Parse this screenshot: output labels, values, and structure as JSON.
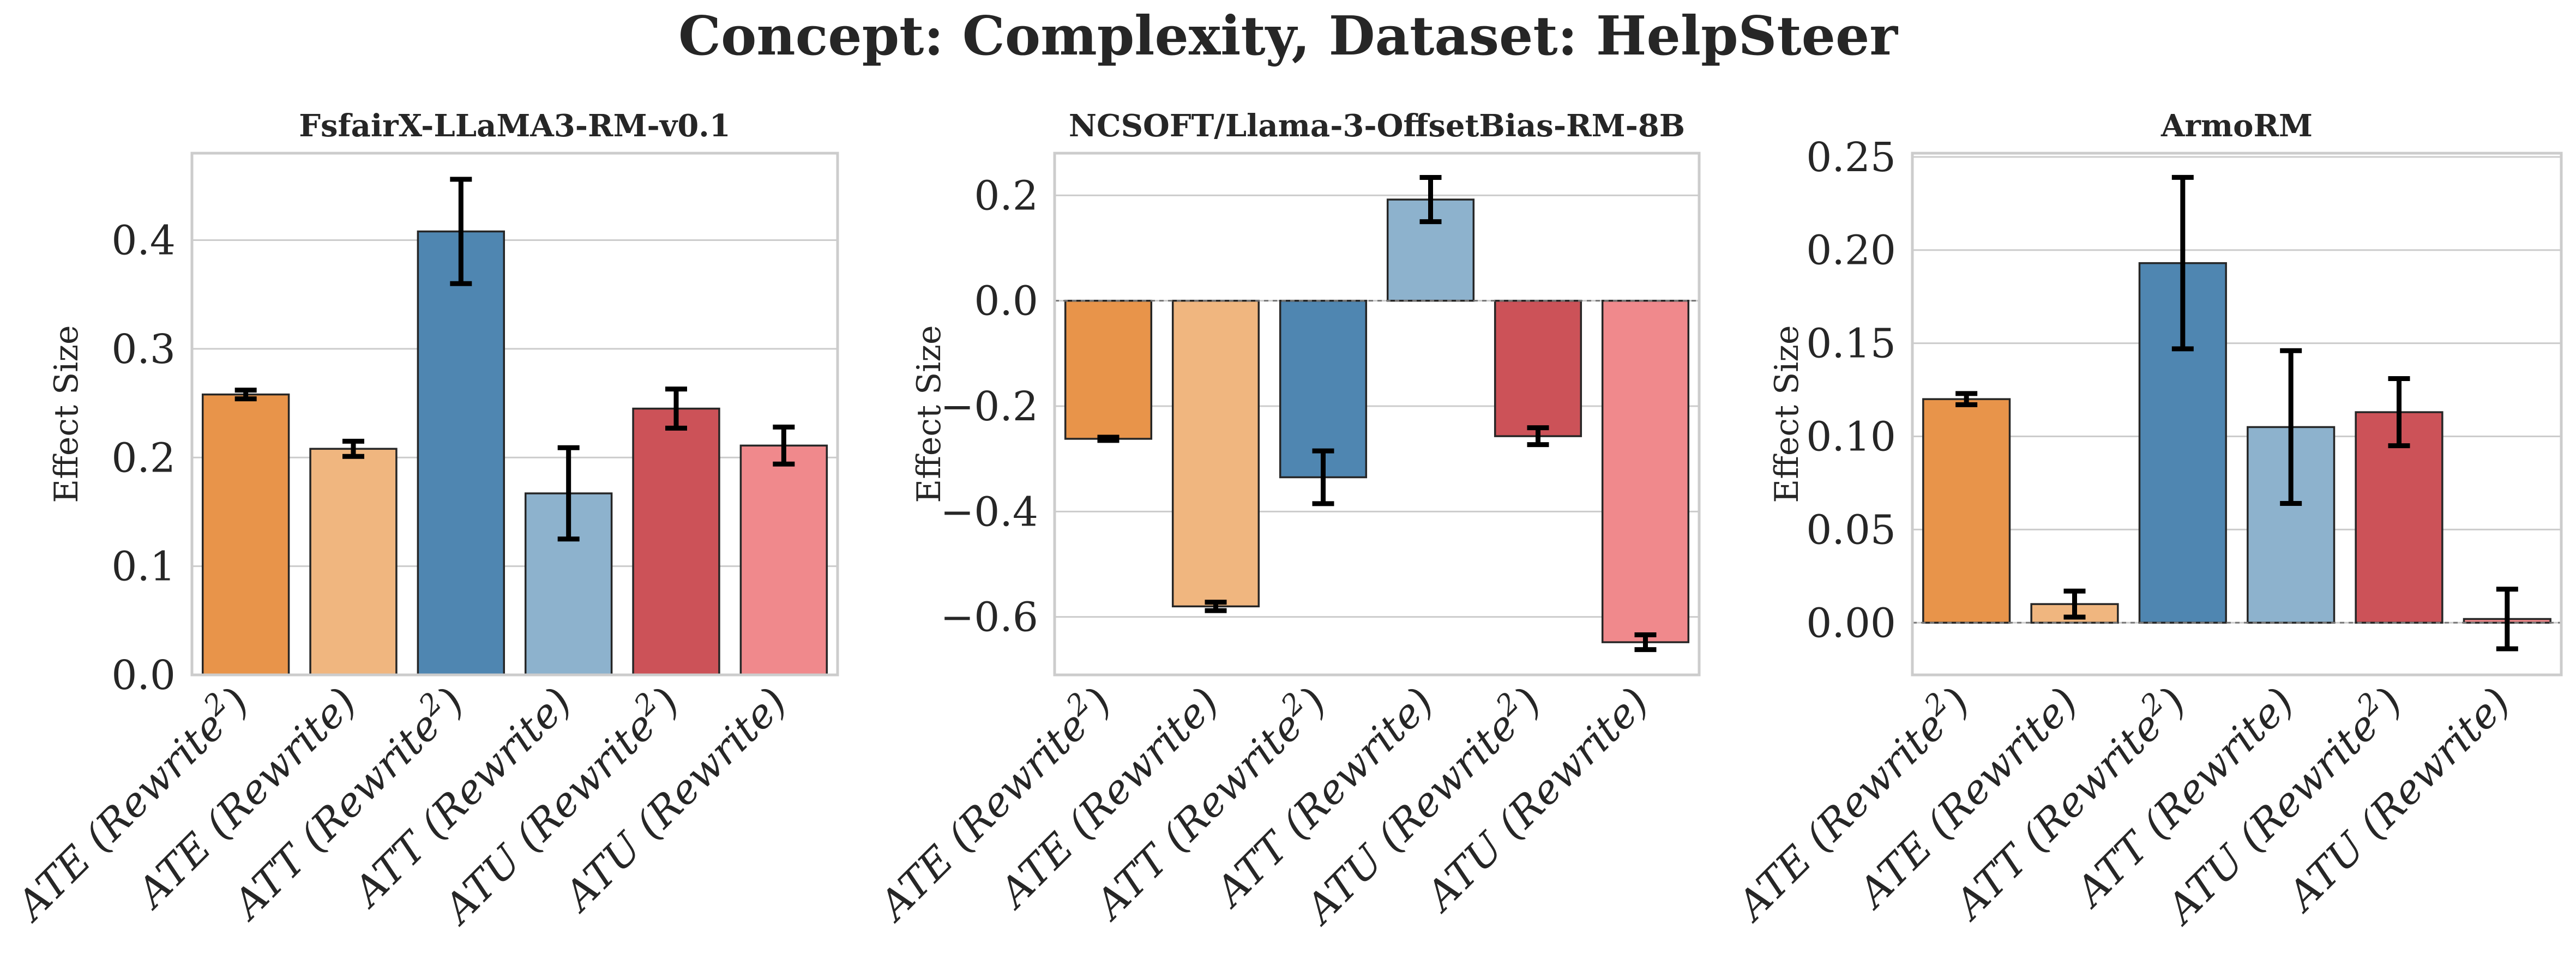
{
  "figure": {
    "title": "Concept: Complexity, Dataset: HelpSteer"
  },
  "chart_data": [
    {
      "type": "bar",
      "title": "FsfairX-LLaMA3-RM-v0.1",
      "ylabel": "Effect Size",
      "ylim": [
        0.0,
        0.48
      ],
      "yticks": [
        0.0,
        0.1,
        0.2,
        0.3,
        0.4
      ],
      "ytick_labels": [
        "0.0",
        "0.1",
        "0.2",
        "0.3",
        "0.4"
      ],
      "categories": [
        {
          "base": "ATE (Rewrite",
          "sup": "2",
          "close": ")"
        },
        {
          "base": "ATE (Rewrite)",
          "sup": "",
          "close": ""
        },
        {
          "base": "ATT (Rewrite",
          "sup": "2",
          "close": ")"
        },
        {
          "base": "ATT (Rewrite)",
          "sup": "",
          "close": ""
        },
        {
          "base": "ATU (Rewrite",
          "sup": "2",
          "close": ")"
        },
        {
          "base": "ATU (Rewrite)",
          "sup": "",
          "close": ""
        }
      ],
      "values": [
        0.258,
        0.208,
        0.408,
        0.167,
        0.245,
        0.211
      ],
      "errors": [
        0.004,
        0.007,
        0.048,
        0.042,
        0.018,
        0.017
      ],
      "colors": [
        "#e8944a",
        "#f0b67f",
        "#4f86b1",
        "#8db2cd",
        "#cc5258",
        "#f0898c"
      ],
      "grid": true,
      "zero_line": false
    },
    {
      "type": "bar",
      "title": "NCSOFT/Llama-3-OffsetBias-RM-8B",
      "ylabel": "Effect Size",
      "ylim": [
        -0.71,
        0.28
      ],
      "yticks": [
        -0.6,
        -0.4,
        -0.2,
        0.0,
        0.2
      ],
      "ytick_labels": [
        "−0.6",
        "−0.4",
        "−0.2",
        "0.0",
        "0.2"
      ],
      "categories": [
        {
          "base": "ATE (Rewrite",
          "sup": "2",
          "close": ")"
        },
        {
          "base": "ATE (Rewrite)",
          "sup": "",
          "close": ""
        },
        {
          "base": "ATT (Rewrite",
          "sup": "2",
          "close": ")"
        },
        {
          "base": "ATT (Rewrite)",
          "sup": "",
          "close": ""
        },
        {
          "base": "ATU (Rewrite",
          "sup": "2",
          "close": ")"
        },
        {
          "base": "ATU (Rewrite)",
          "sup": "",
          "close": ""
        }
      ],
      "values": [
        -0.262,
        -0.58,
        -0.335,
        0.192,
        -0.257,
        -0.648
      ],
      "errors": [
        0.003,
        0.008,
        0.05,
        0.042,
        0.016,
        0.014
      ],
      "colors": [
        "#e8944a",
        "#f0b67f",
        "#4f86b1",
        "#8db2cd",
        "#cc5258",
        "#f0898c"
      ],
      "grid": true,
      "zero_line": true
    },
    {
      "type": "bar",
      "title": "ArmoRM",
      "ylabel": "Effect Size",
      "ylim": [
        -0.028,
        0.252
      ],
      "yticks": [
        0.0,
        0.05,
        0.1,
        0.15,
        0.2,
        0.25
      ],
      "ytick_labels": [
        "0.00",
        "0.05",
        "0.10",
        "0.15",
        "0.20",
        "0.25"
      ],
      "categories": [
        {
          "base": "ATE (Rewrite",
          "sup": "2",
          "close": ")"
        },
        {
          "base": "ATE (Rewrite)",
          "sup": "",
          "close": ""
        },
        {
          "base": "ATT (Rewrite",
          "sup": "2",
          "close": ")"
        },
        {
          "base": "ATT (Rewrite)",
          "sup": "",
          "close": ""
        },
        {
          "base": "ATU (Rewrite",
          "sup": "2",
          "close": ")"
        },
        {
          "base": "ATU (Rewrite)",
          "sup": "",
          "close": ""
        }
      ],
      "values": [
        0.12,
        0.01,
        0.193,
        0.105,
        0.113,
        0.002
      ],
      "errors": [
        0.003,
        0.007,
        0.046,
        0.041,
        0.018,
        0.016
      ],
      "colors": [
        "#e8944a",
        "#f0b67f",
        "#4f86b1",
        "#8db2cd",
        "#cc5258",
        "#f0898c"
      ],
      "grid": true,
      "zero_line": true
    }
  ]
}
